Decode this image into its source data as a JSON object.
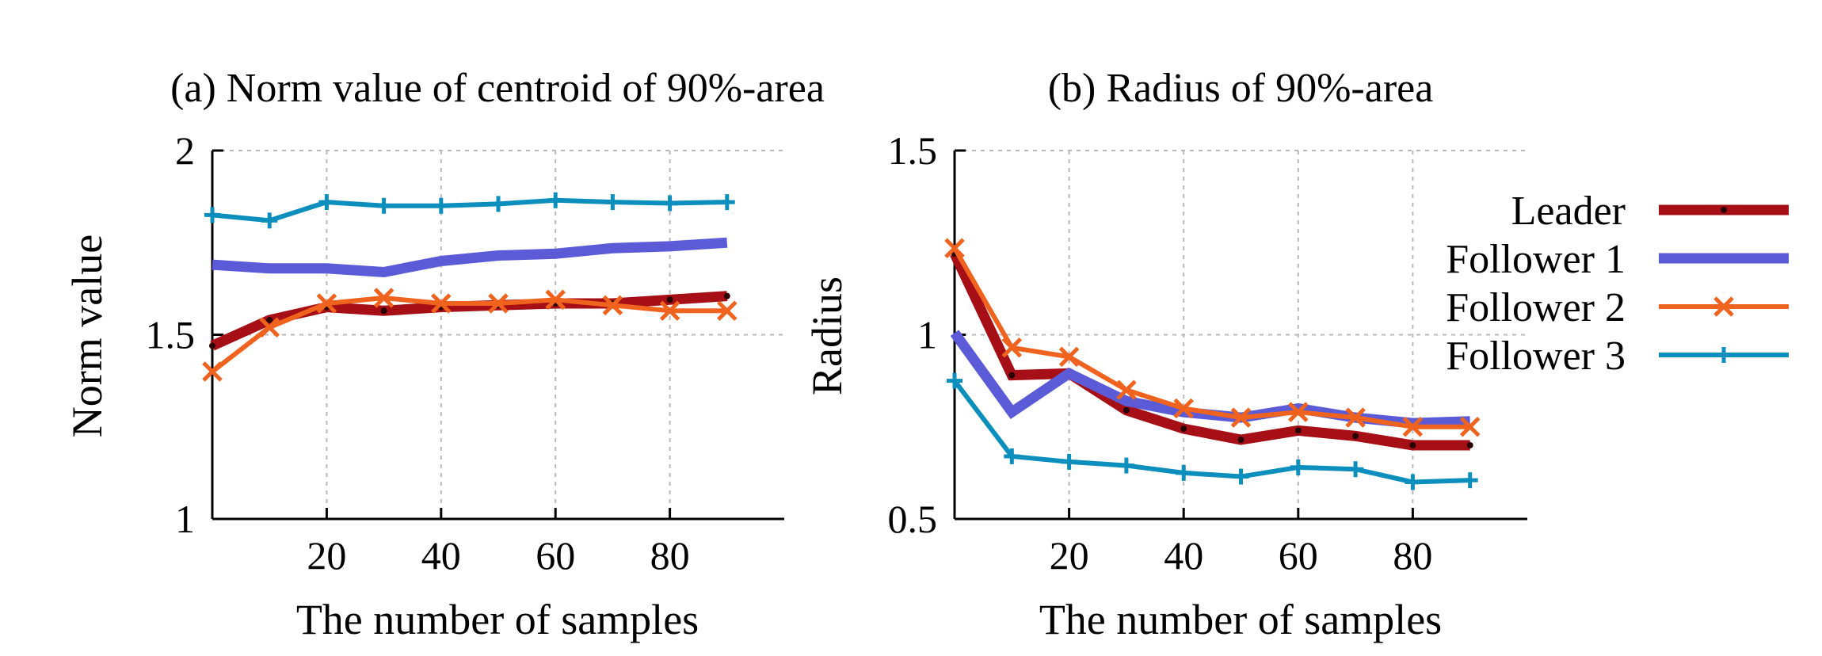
{
  "colors": {
    "leader": "#a50f15",
    "follower1": "#5b5bd8",
    "follower2": "#f0631e",
    "follower3": "#0c8fbc"
  },
  "chart_data": [
    {
      "type": "line",
      "title": "(a) Norm value of centroid of 90%-area",
      "xlabel": "The number of samples",
      "ylabel": "Norm value",
      "xlim": [
        0,
        100
      ],
      "ylim": [
        1,
        2
      ],
      "xticks": [
        20,
        40,
        60,
        80
      ],
      "xtick_labels": [
        "20",
        "40",
        "60",
        "80"
      ],
      "yticks": [
        1,
        1.5,
        2
      ],
      "ytick_labels": [
        "1",
        "1.5",
        "2"
      ],
      "grid": true,
      "x": [
        0,
        10,
        20,
        30,
        40,
        50,
        60,
        70,
        80,
        90
      ],
      "series": [
        {
          "name": "Leader",
          "key": "leader",
          "marker": "dot",
          "values": [
            1.47,
            1.54,
            1.575,
            1.565,
            1.575,
            1.58,
            1.585,
            1.585,
            1.595,
            1.605
          ]
        },
        {
          "name": "Follower 1",
          "key": "follower1",
          "marker": "none",
          "values": [
            1.69,
            1.68,
            1.68,
            1.67,
            1.7,
            1.715,
            1.72,
            1.735,
            1.74,
            1.75
          ]
        },
        {
          "name": "Follower 2",
          "key": "follower2",
          "marker": "x",
          "values": [
            1.4,
            1.52,
            1.585,
            1.6,
            1.585,
            1.585,
            1.595,
            1.58,
            1.565,
            1.565
          ]
        },
        {
          "name": "Follower 3",
          "key": "follower3",
          "marker": "plus",
          "values": [
            1.825,
            1.81,
            1.86,
            1.85,
            1.85,
            1.855,
            1.865,
            1.86,
            1.857,
            1.86
          ]
        }
      ]
    },
    {
      "type": "line",
      "title": "(b) Radius of 90%-area",
      "xlabel": "The number of samples",
      "ylabel": "Radius",
      "xlim": [
        0,
        100
      ],
      "ylim": [
        0.5,
        1.5
      ],
      "xticks": [
        20,
        40,
        60,
        80
      ],
      "xtick_labels": [
        "20",
        "40",
        "60",
        "80"
      ],
      "yticks": [
        0.5,
        1,
        1.5
      ],
      "ytick_labels": [
        "0.5",
        "1",
        "1.5"
      ],
      "grid": true,
      "legend_position": "right",
      "x": [
        0,
        10,
        20,
        30,
        40,
        50,
        60,
        70,
        80,
        90
      ],
      "series": [
        {
          "name": "Leader",
          "key": "leader",
          "marker": "dot",
          "values": [
            1.22,
            0.89,
            0.895,
            0.795,
            0.745,
            0.715,
            0.74,
            0.725,
            0.7,
            0.7
          ]
        },
        {
          "name": "Follower 1",
          "key": "follower1",
          "marker": "none",
          "values": [
            1.005,
            0.79,
            0.895,
            0.82,
            0.79,
            0.775,
            0.8,
            0.775,
            0.76,
            0.765
          ]
        },
        {
          "name": "Follower 2",
          "key": "follower2",
          "marker": "x",
          "values": [
            1.235,
            0.965,
            0.94,
            0.85,
            0.8,
            0.775,
            0.79,
            0.775,
            0.75,
            0.75
          ]
        },
        {
          "name": "Follower 3",
          "key": "follower3",
          "marker": "plus",
          "values": [
            0.875,
            0.67,
            0.655,
            0.645,
            0.625,
            0.615,
            0.64,
            0.635,
            0.6,
            0.605
          ]
        }
      ]
    }
  ]
}
